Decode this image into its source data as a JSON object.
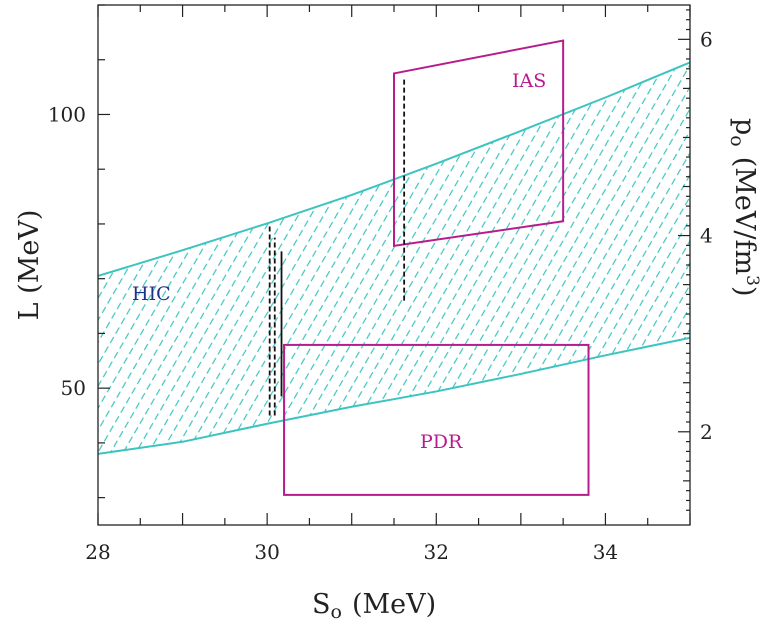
{
  "chart_data": {
    "type": "area",
    "xlabel": "S",
    "xlabel_subscript": "o",
    "xlabel_unit": "(MeV)",
    "ylabel": "L (MeV)",
    "y2label": "p",
    "y2label_subscript": "o",
    "y2label_unit_main": "(MeV/fm",
    "y2label_unit_sup": "3",
    "y2label_unit_end": ")",
    "xlim": [
      28,
      35
    ],
    "ylim": [
      25,
      120
    ],
    "y2lim": [
      1.05,
      6.35
    ],
    "xticks": [
      28,
      30,
      32,
      34
    ],
    "yticks": [
      50,
      100
    ],
    "y2ticks": [
      2,
      4,
      6
    ],
    "grid": false,
    "colors": {
      "band": "#3cc4c0",
      "box": "#b81c8c",
      "hic_label": "#1f2f8a",
      "axes": "#222222",
      "dashed": "#111111"
    },
    "hic_band": {
      "label": "HIC",
      "upper": [
        [
          28,
          70.5
        ],
        [
          29,
          75.2
        ],
        [
          30,
          80.1
        ],
        [
          31,
          85.3
        ],
        [
          32,
          91.0
        ],
        [
          33,
          97.0
        ],
        [
          34,
          103.1
        ],
        [
          35,
          109.5
        ]
      ],
      "lower": [
        [
          28,
          38.0
        ],
        [
          29,
          40.2
        ],
        [
          30,
          43.5
        ],
        [
          31,
          46.6
        ],
        [
          32,
          49.4
        ],
        [
          33,
          52.6
        ],
        [
          34,
          56.0
        ],
        [
          35,
          59.2
        ]
      ]
    },
    "ias_box": {
      "label": "IAS",
      "corners": [
        [
          31.5,
          107.5
        ],
        [
          33.5,
          113.5
        ],
        [
          33.5,
          80.5
        ],
        [
          31.5,
          76.0
        ]
      ]
    },
    "pdr_box": {
      "label": "PDR",
      "x": [
        30.2,
        33.8
      ],
      "y": [
        30.5,
        57.9
      ]
    },
    "vertical_segments": [
      {
        "x": 30.03,
        "y": [
          45.0,
          80.0
        ],
        "style": "dashed"
      },
      {
        "x": 30.09,
        "y": [
          45.0,
          77.5
        ],
        "style": "dashed"
      },
      {
        "x": 30.17,
        "y": [
          48.5,
          75.0
        ],
        "style": "solid"
      },
      {
        "x": 31.62,
        "y": [
          66.0,
          106.5
        ],
        "style": "dashed"
      }
    ]
  }
}
